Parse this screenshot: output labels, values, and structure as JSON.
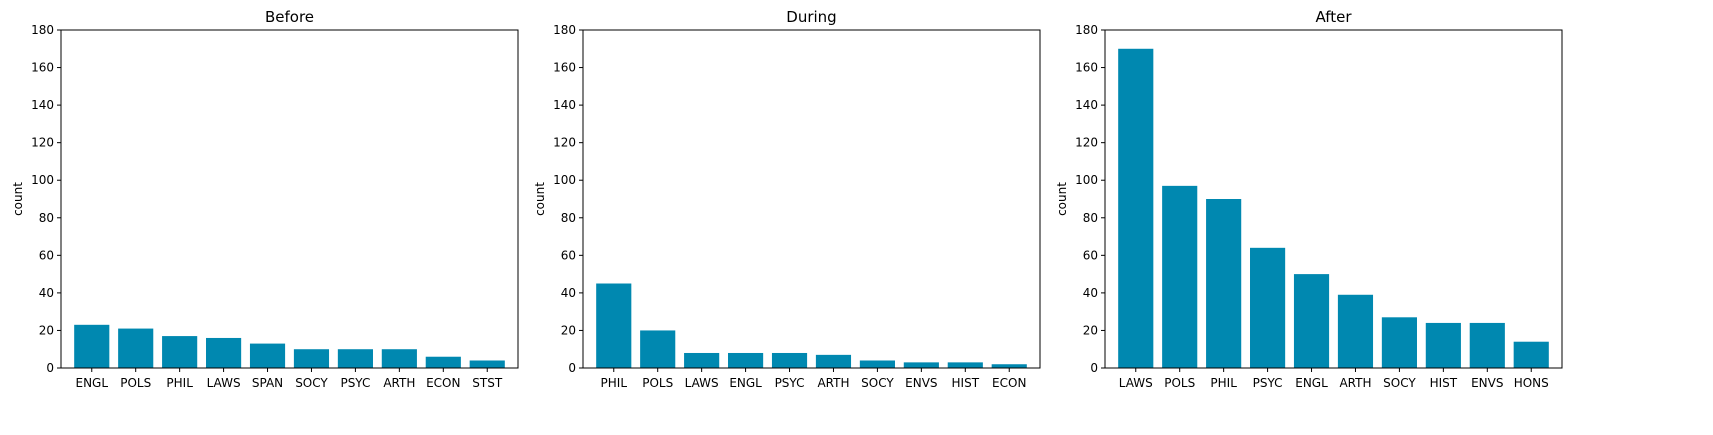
{
  "chart_data": [
    {
      "type": "bar",
      "title": "Before",
      "ylabel": "count",
      "ylim": [
        0,
        180
      ],
      "yticks": [
        0,
        20,
        40,
        60,
        80,
        100,
        120,
        140,
        160,
        180
      ],
      "categories": [
        "ENGL",
        "POLS",
        "PHIL",
        "LAWS",
        "SPAN",
        "SOCY",
        "PSYC",
        "ARTH",
        "ECON",
        "STST"
      ],
      "values": [
        23,
        21,
        17,
        16,
        13,
        10,
        10,
        10,
        6,
        4
      ],
      "color": "#0088b0",
      "grid": false
    },
    {
      "type": "bar",
      "title": "During",
      "ylabel": "count",
      "ylim": [
        0,
        180
      ],
      "yticks": [
        0,
        20,
        40,
        60,
        80,
        100,
        120,
        140,
        160,
        180
      ],
      "categories": [
        "PHIL",
        "POLS",
        "LAWS",
        "ENGL",
        "PSYC",
        "ARTH",
        "SOCY",
        "ENVS",
        "HIST",
        "ECON"
      ],
      "values": [
        45,
        20,
        8,
        8,
        8,
        7,
        4,
        3,
        3,
        2
      ],
      "color": "#0088b0",
      "grid": false
    },
    {
      "type": "bar",
      "title": "After",
      "ylabel": "count",
      "ylim": [
        0,
        180
      ],
      "yticks": [
        0,
        20,
        40,
        60,
        80,
        100,
        120,
        140,
        160,
        180
      ],
      "categories": [
        "LAWS",
        "POLS",
        "PHIL",
        "PSYC",
        "ENGL",
        "ARTH",
        "SOCY",
        "HIST",
        "ENVS",
        "HONS"
      ],
      "values": [
        170,
        97,
        90,
        64,
        50,
        39,
        27,
        24,
        24,
        14
      ],
      "color": "#0088b0",
      "grid": false
    }
  ]
}
